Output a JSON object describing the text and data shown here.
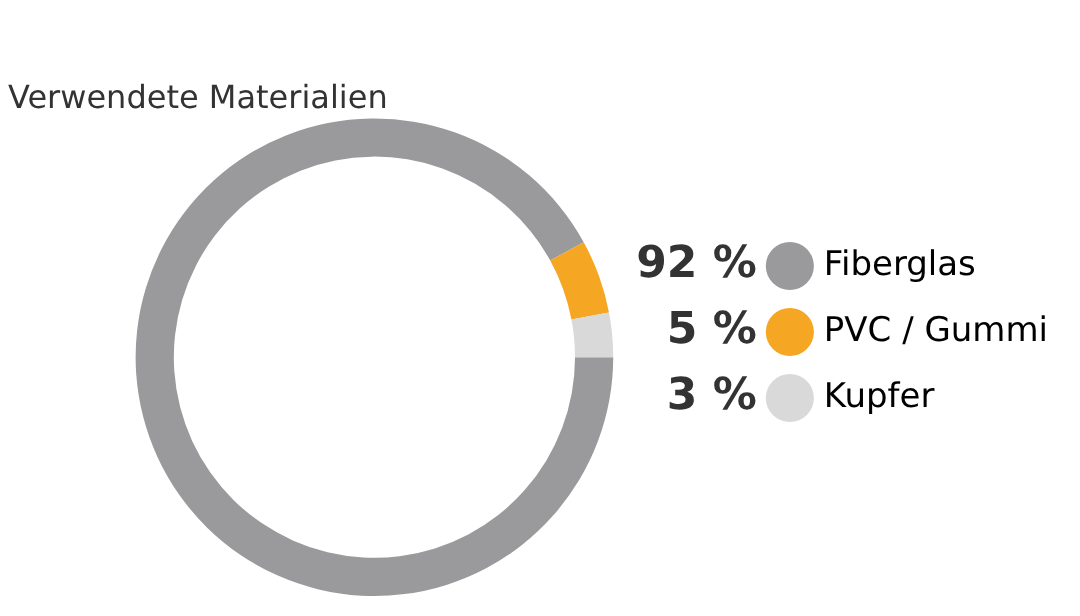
{
  "chart_data": {
    "type": "donut",
    "title": "Verwendete Materialien",
    "categories": [
      "Fiberglas",
      "PVC / Gummi",
      "Kupfer"
    ],
    "values": [
      92,
      5,
      3
    ],
    "value_labels": [
      "92 %",
      "5 %",
      "3 %"
    ],
    "colors": [
      "#9a9a9c",
      "#f5a623",
      "#d9d9d9"
    ],
    "legend": "right"
  }
}
